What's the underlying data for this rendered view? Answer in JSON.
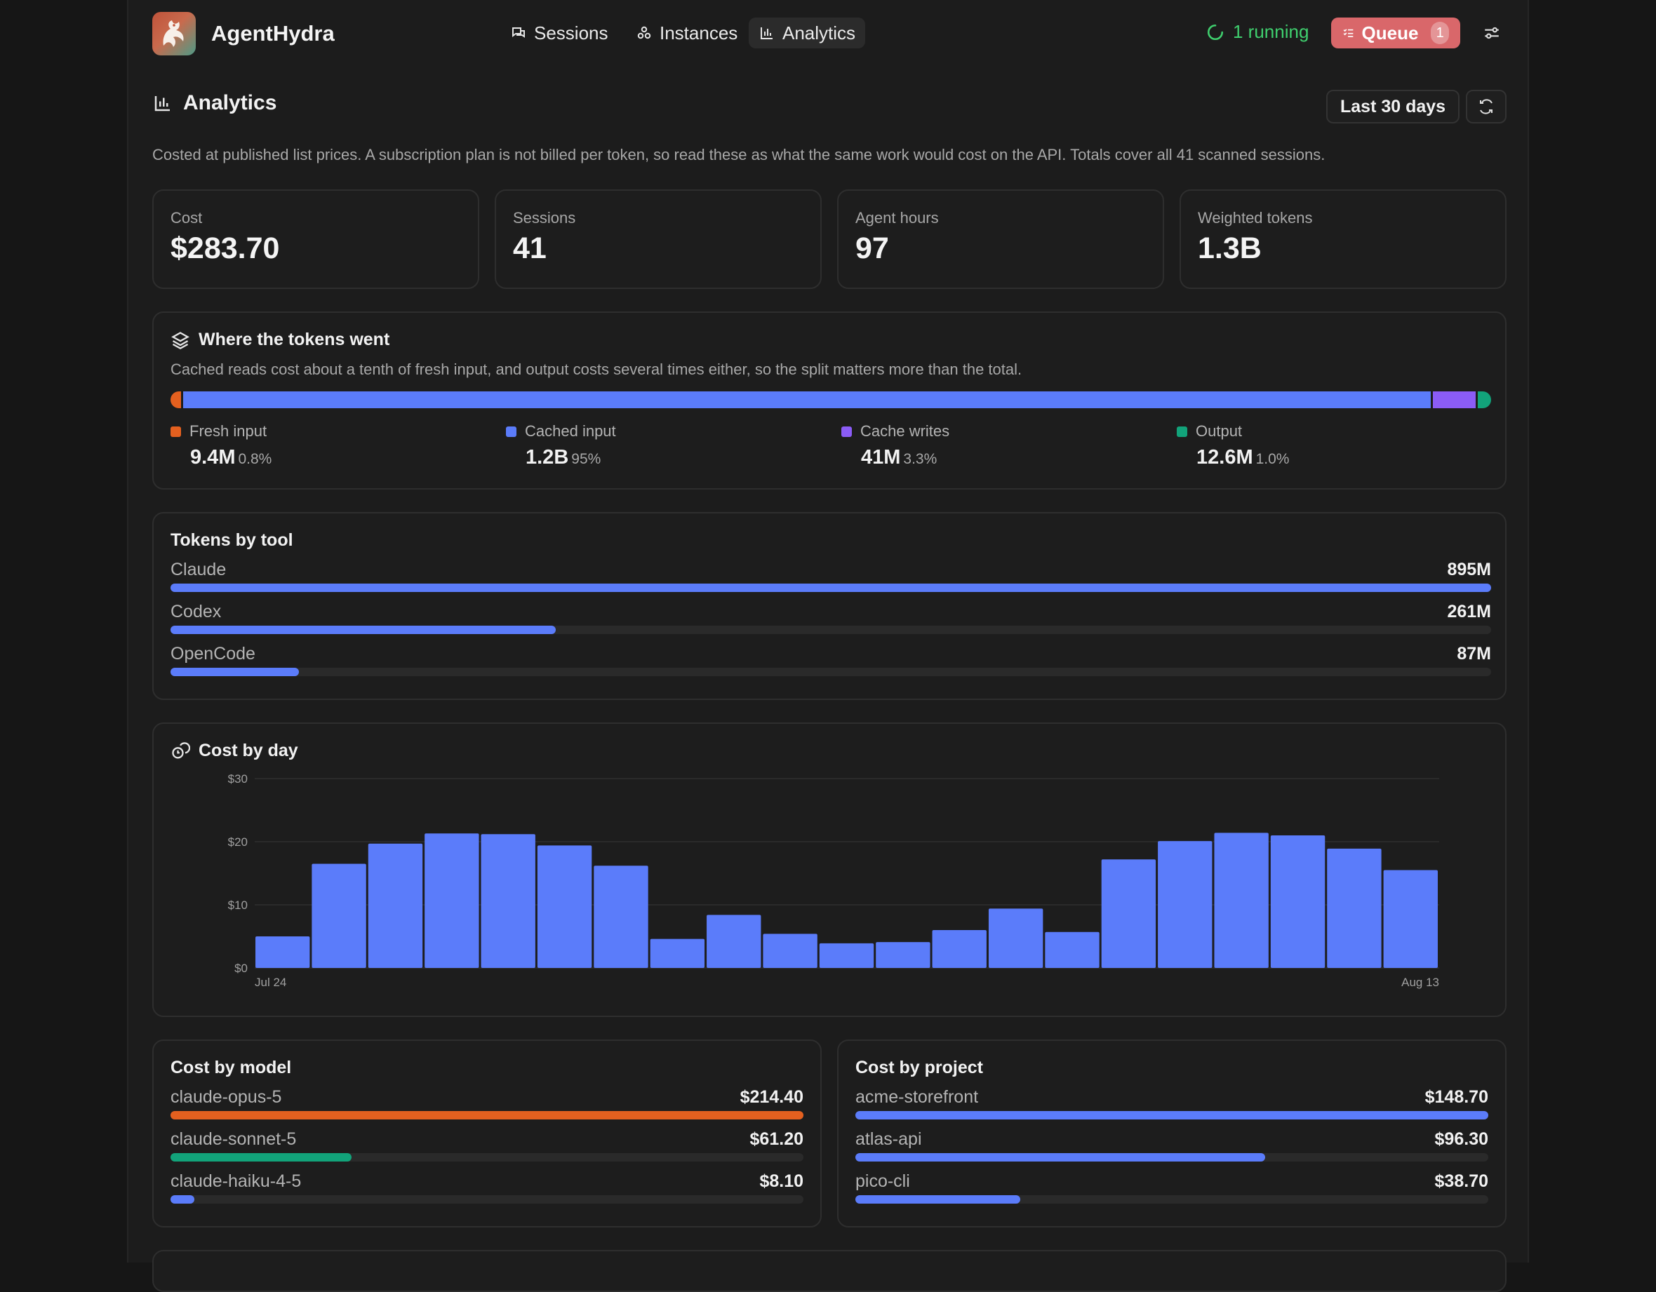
{
  "app": {
    "name": "AgentHydra",
    "nav": [
      {
        "label": "Sessions",
        "icon": "chat-icon"
      },
      {
        "label": "Instances",
        "icon": "nodes-icon"
      },
      {
        "label": "Analytics",
        "icon": "bar-chart-icon",
        "active": true
      }
    ],
    "running_label": "1 running",
    "queue_label": "Queue",
    "queue_count": "1"
  },
  "page": {
    "title": "Analytics",
    "range_label": "Last 30 days",
    "note": "Costed at published list prices. A subscription plan is not billed per token, so read these as what the same work would cost on the API. Totals cover all 41 scanned sessions."
  },
  "stats": [
    {
      "label": "Cost",
      "value": "$283.70"
    },
    {
      "label": "Sessions",
      "value": "41"
    },
    {
      "label": "Agent hours",
      "value": "97"
    },
    {
      "label": "Weighted tokens",
      "value": "1.3B"
    }
  ],
  "token_split": {
    "title": "Where the tokens went",
    "subtitle": "Cached reads cost about a tenth of fresh input, and output costs several times either, so the split matters more than the total.",
    "segments": [
      {
        "label": "Fresh input",
        "value": "9.4M",
        "pct": "0.8%",
        "share": 0.8,
        "color": "#e4601f"
      },
      {
        "label": "Cached input",
        "value": "1.2B",
        "pct": "95%",
        "share": 95,
        "color": "#5b7cfa"
      },
      {
        "label": "Cache writes",
        "value": "41M",
        "pct": "3.3%",
        "share": 3.3,
        "color": "#8b5cf6"
      },
      {
        "label": "Output",
        "value": "12.6M",
        "pct": "1.0%",
        "share": 1.0,
        "color": "#12a37a"
      }
    ]
  },
  "tokens_by_tool": {
    "title": "Tokens by tool",
    "items": [
      {
        "label": "Claude",
        "value": "895M",
        "fraction": 1.0
      },
      {
        "label": "Codex",
        "value": "261M",
        "fraction": 0.2916
      },
      {
        "label": "OpenCode",
        "value": "87M",
        "fraction": 0.0972
      }
    ],
    "bar_color": "#5b7cfa"
  },
  "cost_by_day": {
    "title": "Cost by day"
  },
  "chart_data": {
    "type": "bar",
    "categories": [
      "Jul 24",
      "Jul 25",
      "Jul 26",
      "Jul 27",
      "Jul 28",
      "Jul 29",
      "Jul 30",
      "Jul 31",
      "Aug 1",
      "Aug 2",
      "Aug 3",
      "Aug 4",
      "Aug 5",
      "Aug 6",
      "Aug 7",
      "Aug 8",
      "Aug 9",
      "Aug 10",
      "Aug 11",
      "Aug 12",
      "Aug 13"
    ],
    "values": [
      5.0,
      16.5,
      19.7,
      21.3,
      21.2,
      19.4,
      16.2,
      4.6,
      8.4,
      5.4,
      3.9,
      4.1,
      6.0,
      9.4,
      5.7,
      17.2,
      20.1,
      21.4,
      21.0,
      18.9,
      15.5
    ],
    "tick_labels_shown": {
      "first": "Jul 24",
      "last": "Aug 13"
    },
    "yticks": [
      "$0",
      "$10",
      "$20",
      "$30"
    ],
    "ylim": [
      0,
      30
    ],
    "grid": true,
    "color": "#5b7cfa"
  },
  "cost_by_model": {
    "title": "Cost by model",
    "items": [
      {
        "label": "claude-opus-5",
        "value": "$214.40",
        "fraction": 1.0,
        "color": "#e4601f"
      },
      {
        "label": "claude-sonnet-5",
        "value": "$61.20",
        "fraction": 0.2855,
        "color": "#12a37a"
      },
      {
        "label": "claude-haiku-4-5",
        "value": "$8.10",
        "fraction": 0.0378,
        "color": "#5b7cfa"
      }
    ]
  },
  "cost_by_project": {
    "title": "Cost by project",
    "items": [
      {
        "label": "acme-storefront",
        "value": "$148.70",
        "fraction": 1.0
      },
      {
        "label": "atlas-api",
        "value": "$96.30",
        "fraction": 0.6476
      },
      {
        "label": "pico-cli",
        "value": "$38.70",
        "fraction": 0.2603
      }
    ],
    "bar_color": "#5b7cfa"
  }
}
